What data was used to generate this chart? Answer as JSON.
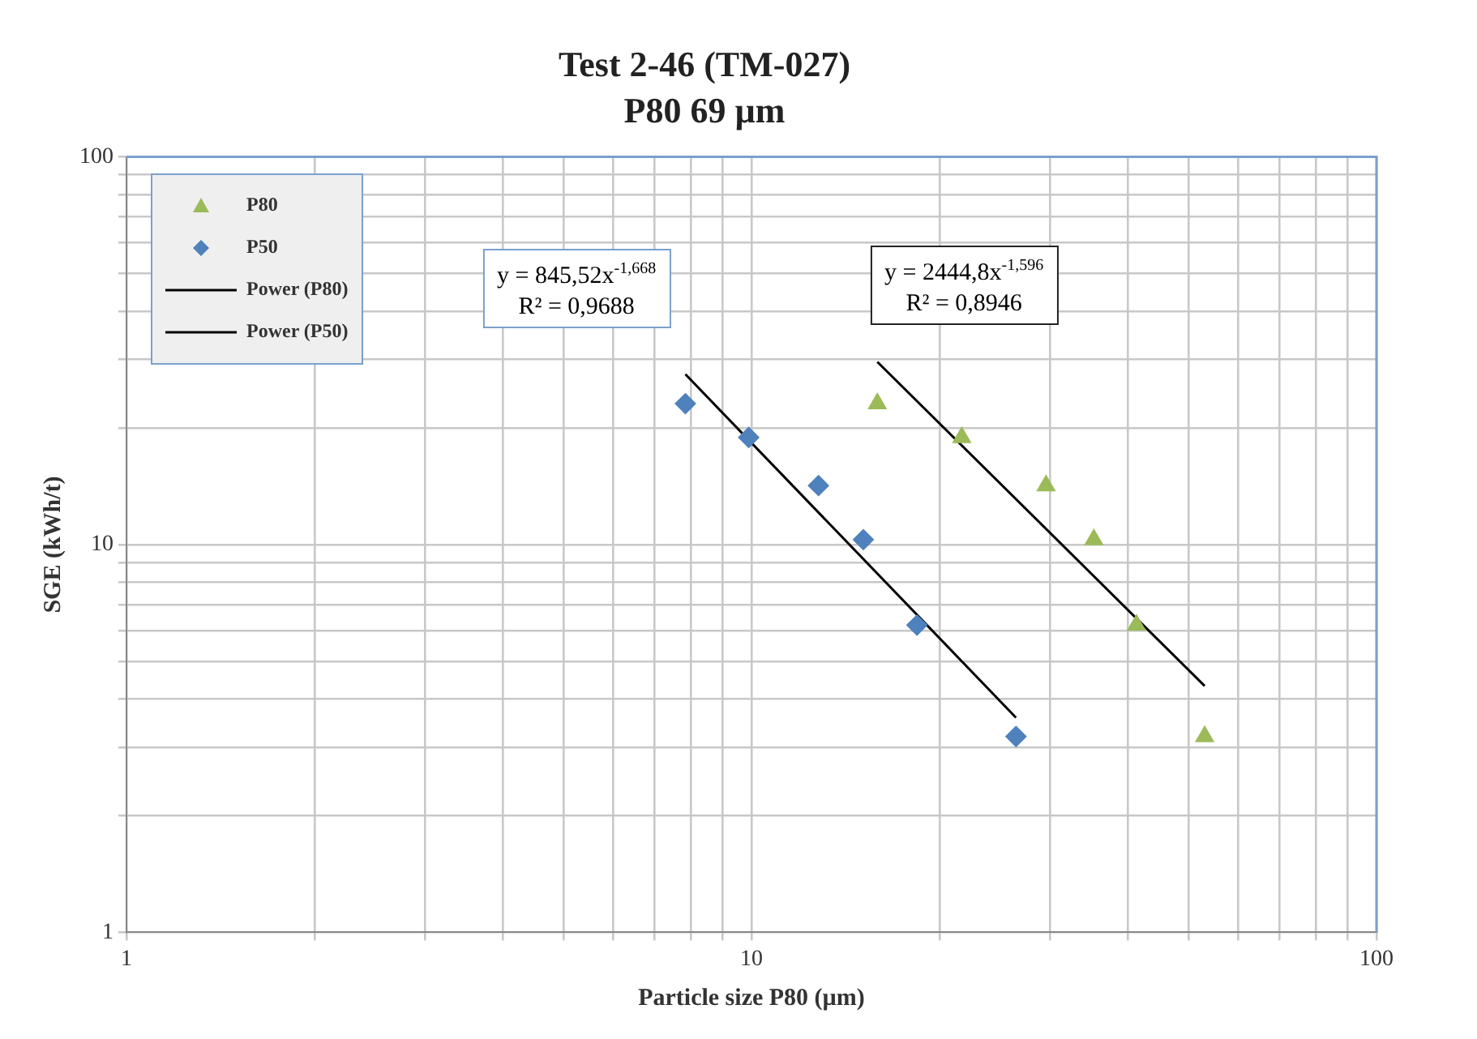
{
  "chart_data": {
    "type": "scatter",
    "title": "Test 2-46 (TM-027)",
    "subtitle": "P80 69 µm",
    "xlabel": "Particle size P80 (µm)",
    "ylabel": "SGE (kWh/t)",
    "log": "xy",
    "grid": true,
    "legend": "top left",
    "xlim": [
      1,
      100
    ],
    "ylim": [
      1,
      100
    ],
    "xticks": [
      1,
      {
        "value": 2,
        "label": null
      },
      {
        "value": 3,
        "label": null
      },
      {
        "value": 4,
        "label": null
      },
      {
        "value": 5,
        "label": null
      },
      {
        "value": 6,
        "label": null
      },
      {
        "value": 7,
        "label": null
      },
      {
        "value": 8,
        "label": null
      },
      {
        "value": 9,
        "label": null
      },
      10,
      {
        "value": 20,
        "label": null
      },
      {
        "value": 30,
        "label": null
      },
      {
        "value": 40,
        "label": null
      },
      {
        "value": 50,
        "label": null
      },
      {
        "value": 60,
        "label": null
      },
      {
        "value": 70,
        "label": null
      },
      {
        "value": 80,
        "label": null
      },
      {
        "value": 90,
        "label": null
      },
      100
    ],
    "yticks": [
      1,
      {
        "value": 2,
        "label": null
      },
      {
        "value": 3,
        "label": null
      },
      {
        "value": 4,
        "label": null
      },
      {
        "value": 5,
        "label": null
      },
      {
        "value": 6,
        "label": null
      },
      {
        "value": 7,
        "label": null
      },
      {
        "value": 8,
        "label": null
      },
      {
        "value": 9,
        "label": null
      },
      10,
      {
        "value": 20,
        "label": null
      },
      {
        "value": 30,
        "label": null
      },
      {
        "value": 40,
        "label": null
      },
      {
        "value": 50,
        "label": null
      },
      {
        "value": 60,
        "label": null
      },
      {
        "value": 70,
        "label": null
      },
      {
        "value": 80,
        "label": null
      },
      {
        "value": 90,
        "label": null
      },
      100
    ],
    "series": [
      {
        "name": "P80",
        "type": "scatter",
        "marker": "triangle",
        "color": "#9bbb59",
        "x": [
          15.9,
          21.7,
          29.6,
          35.3,
          41.3,
          53.1
        ],
        "values": [
          23.1,
          18.9,
          14.2,
          10.3,
          6.2,
          3.2
        ]
      },
      {
        "name": "P50",
        "type": "scatter",
        "marker": "diamond",
        "color": "#4f81bd",
        "x": [
          7.84,
          9.9,
          12.8,
          15.1,
          18.4,
          26.5
        ],
        "values": [
          23.1,
          18.9,
          14.2,
          10.3,
          6.2,
          3.2
        ]
      },
      {
        "name": "Power (P80)",
        "type": "line",
        "marker": "none",
        "color": "#000000",
        "x": [
          15.9,
          53.1
        ],
        "values": [
          29.6,
          4.32
        ]
      },
      {
        "name": "Power (P50)",
        "type": "line",
        "marker": "none",
        "color": "#000000",
        "x": [
          7.84,
          26.5
        ],
        "values": [
          27.5,
          3.58
        ]
      }
    ],
    "annotations": [
      "y = 845,52x$^{-1,668}$\nR² = 0,9688",
      "y = 2444,8x$^{-1,596}$\nR² = 0,8946"
    ]
  }
}
